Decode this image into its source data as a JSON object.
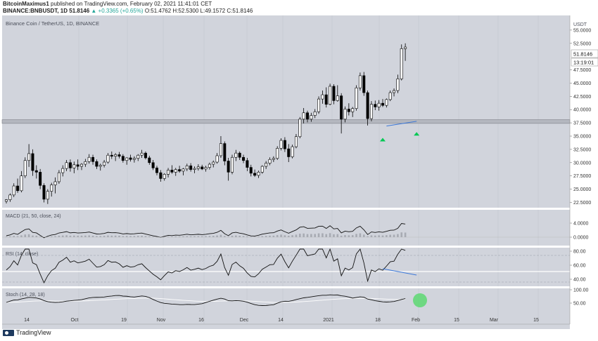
{
  "header": {
    "author": "BitcoinMaximus1",
    "published": "published on TradingView.com, February 02, 2021 11:41:01 CET",
    "symbol": "BINANCE:BNBUSDT, 1D",
    "last": "51.8146",
    "change": "▲ +0.3365 (+0.65%)",
    "ohlc": "O:51.4762 H:52.5300 L:49.1572 C:51.8146"
  },
  "chart_data": {
    "type": "candlestick",
    "title": "Binance Coin / TetherUS, 1D, BINANCE",
    "currency": "USDT",
    "price_axis": {
      "ylim": [
        21.5,
        57.5
      ],
      "ticks": [
        "55.0000",
        "52.5000",
        "47.5000",
        "45.0000",
        "42.5000",
        "40.0000",
        "37.5000",
        "35.0000",
        "32.5000",
        "30.0000",
        "27.5000",
        "25.0000",
        "22.5000"
      ]
    },
    "last_price_label": "51.8146",
    "countdown_label": "13:19:01",
    "support_zone": [
      37.4,
      38.1
    ],
    "time_axis": {
      "labels": [
        "14",
        "Oct",
        "19",
        "Nov",
        "16",
        "Dec",
        "14",
        "2021",
        "18",
        "Feb",
        "15",
        "Mar",
        "15"
      ]
    },
    "candles": [
      [
        22.7,
        23.1,
        22.3,
        23.0
      ],
      [
        23.0,
        24.2,
        22.6,
        23.9
      ],
      [
        23.9,
        26.1,
        23.5,
        25.6
      ],
      [
        25.6,
        27.0,
        24.3,
        24.7
      ],
      [
        24.7,
        28.4,
        24.4,
        27.5
      ],
      [
        27.5,
        31.0,
        27.1,
        30.4
      ],
      [
        30.4,
        33.5,
        29.2,
        31.7
      ],
      [
        31.7,
        32.5,
        27.5,
        28.5
      ],
      [
        28.5,
        29.5,
        27.0,
        28.2
      ],
      [
        28.2,
        28.8,
        25.0,
        25.7
      ],
      [
        25.7,
        26.1,
        22.5,
        23.1
      ],
      [
        23.1,
        25.0,
        22.2,
        24.6
      ],
      [
        24.6,
        26.2,
        23.6,
        25.8
      ],
      [
        25.8,
        27.2,
        24.2,
        26.4
      ],
      [
        26.4,
        28.6,
        26.0,
        28.1
      ],
      [
        28.1,
        29.5,
        27.4,
        28.9
      ],
      [
        28.9,
        30.5,
        28.4,
        30.0
      ],
      [
        30.0,
        30.6,
        28.3,
        29.0
      ],
      [
        29.0,
        30.2,
        28.0,
        29.6
      ],
      [
        29.6,
        30.6,
        28.6,
        29.3
      ],
      [
        29.3,
        29.9,
        28.6,
        29.7
      ],
      [
        29.7,
        30.7,
        29.2,
        30.2
      ],
      [
        30.2,
        31.6,
        29.8,
        31.0
      ],
      [
        31.0,
        31.5,
        29.6,
        30.2
      ],
      [
        30.2,
        30.6,
        28.8,
        29.3
      ],
      [
        29.3,
        29.8,
        28.5,
        29.5
      ],
      [
        29.5,
        30.5,
        29.1,
        30.1
      ],
      [
        30.1,
        31.8,
        29.8,
        31.4
      ],
      [
        31.4,
        32.1,
        30.7,
        31.2
      ],
      [
        31.2,
        31.8,
        30.3,
        31.5
      ],
      [
        31.5,
        32.0,
        30.8,
        31.2
      ],
      [
        31.2,
        31.6,
        30.0,
        30.4
      ],
      [
        30.4,
        31.0,
        29.6,
        30.9
      ],
      [
        30.9,
        31.5,
        30.2,
        30.6
      ],
      [
        30.6,
        31.2,
        30.0,
        30.8
      ],
      [
        30.8,
        31.6,
        30.3,
        31.4
      ],
      [
        31.4,
        32.4,
        30.9,
        31.8
      ],
      [
        31.8,
        32.1,
        30.6,
        30.9
      ],
      [
        30.9,
        31.3,
        29.6,
        30.0
      ],
      [
        30.0,
        30.5,
        28.6,
        29.0
      ],
      [
        29.0,
        29.4,
        27.6,
        28.1
      ],
      [
        28.1,
        28.6,
        26.4,
        27.0
      ],
      [
        27.0,
        28.0,
        26.6,
        27.8
      ],
      [
        27.8,
        29.0,
        27.2,
        28.6
      ],
      [
        28.6,
        29.5,
        27.9,
        28.2
      ],
      [
        28.2,
        29.0,
        27.5,
        28.7
      ],
      [
        28.7,
        29.4,
        28.1,
        28.4
      ],
      [
        28.4,
        29.0,
        27.6,
        28.8
      ],
      [
        28.8,
        29.8,
        28.4,
        29.4
      ],
      [
        29.4,
        29.9,
        28.3,
        28.7
      ],
      [
        28.7,
        29.3,
        28.0,
        28.9
      ],
      [
        28.9,
        29.7,
        28.5,
        29.2
      ],
      [
        29.2,
        29.6,
        28.6,
        28.8
      ],
      [
        28.8,
        29.4,
        28.3,
        29.1
      ],
      [
        29.1,
        30.0,
        28.7,
        29.7
      ],
      [
        29.7,
        30.4,
        29.1,
        30.1
      ],
      [
        30.1,
        31.8,
        29.8,
        31.3
      ],
      [
        31.3,
        35.0,
        30.9,
        33.6
      ],
      [
        33.6,
        34.0,
        29.5,
        30.3
      ],
      [
        30.3,
        30.9,
        26.6,
        28.2
      ],
      [
        28.2,
        31.5,
        27.8,
        31.0
      ],
      [
        31.0,
        32.4,
        30.3,
        31.8
      ],
      [
        31.8,
        32.1,
        30.5,
        31.0
      ],
      [
        31.0,
        31.5,
        29.9,
        30.4
      ],
      [
        30.4,
        30.9,
        28.4,
        29.1
      ],
      [
        29.1,
        29.6,
        27.4,
        28.0
      ],
      [
        28.0,
        28.7,
        27.3,
        27.6
      ],
      [
        27.6,
        28.5,
        27.1,
        28.2
      ],
      [
        28.2,
        29.5,
        27.9,
        29.3
      ],
      [
        29.3,
        30.3,
        28.8,
        29.9
      ],
      [
        29.9,
        31.0,
        29.5,
        30.6
      ],
      [
        30.6,
        31.2,
        30.1,
        30.8
      ],
      [
        30.8,
        33.1,
        30.5,
        32.7
      ],
      [
        32.7,
        34.6,
        32.3,
        34.2
      ],
      [
        34.2,
        34.8,
        32.0,
        32.6
      ],
      [
        32.6,
        33.5,
        30.1,
        31.1
      ],
      [
        31.1,
        33.4,
        30.8,
        33.0
      ],
      [
        33.0,
        35.4,
        32.7,
        34.9
      ],
      [
        34.9,
        38.6,
        34.6,
        38.2
      ],
      [
        38.2,
        40.3,
        37.4,
        39.4
      ],
      [
        39.4,
        39.8,
        37.6,
        38.2
      ],
      [
        38.2,
        39.4,
        37.7,
        38.9
      ],
      [
        38.9,
        40.1,
        38.4,
        39.6
      ],
      [
        39.6,
        42.5,
        39.2,
        42.0
      ],
      [
        42.0,
        43.6,
        41.1,
        42.8
      ],
      [
        42.8,
        44.2,
        40.4,
        41.0
      ],
      [
        41.0,
        44.9,
        40.8,
        44.4
      ],
      [
        44.4,
        44.8,
        41.0,
        41.7
      ],
      [
        41.7,
        44.6,
        41.5,
        42.6
      ],
      [
        42.6,
        43.1,
        35.5,
        38.2
      ],
      [
        38.2,
        40.6,
        37.6,
        40.1
      ],
      [
        40.1,
        41.2,
        38.9,
        39.6
      ],
      [
        39.6,
        40.5,
        38.6,
        40.2
      ],
      [
        40.2,
        44.6,
        39.8,
        44.1
      ],
      [
        44.1,
        47.0,
        43.6,
        46.4
      ],
      [
        46.4,
        47.1,
        42.6,
        43.2
      ],
      [
        43.2,
        43.6,
        37.0,
        38.3
      ],
      [
        38.3,
        41.6,
        37.8,
        41.0
      ],
      [
        41.0,
        41.7,
        39.9,
        40.5
      ],
      [
        40.5,
        41.8,
        39.8,
        41.2
      ],
      [
        41.2,
        42.0,
        40.5,
        40.8
      ],
      [
        40.8,
        42.1,
        40.4,
        41.9
      ],
      [
        41.9,
        43.6,
        41.6,
        43.2
      ],
      [
        43.2,
        44.0,
        42.5,
        43.6
      ],
      [
        43.6,
        46.6,
        43.1,
        45.8
      ],
      [
        45.8,
        52.3,
        45.5,
        51.5
      ],
      [
        51.5,
        52.5,
        49.2,
        51.8
      ]
    ],
    "arrows": [
      {
        "x": 100,
        "y": 34.4
      },
      {
        "x": 109,
        "y": 35.5
      }
    ],
    "divergence_price": {
      "x1": 101,
      "y1": 36.9,
      "x2": 109,
      "y2": 37.8
    },
    "indicators": [
      {
        "label": "MACD (21, 50, close, 24)",
        "ticks": [
          "4.0000",
          "0.0000"
        ],
        "ylim": [
          -1.5,
          6.5
        ]
      },
      {
        "label": "RSI (14, close)",
        "ticks": [
          "80.00",
          "60.00",
          "40.00"
        ],
        "ylim": [
          25,
          85
        ],
        "bands": [
          70,
          50,
          30
        ]
      },
      {
        "label": "Stoch (14, 28, 18)",
        "ticks": [
          "100.00",
          "50.00"
        ],
        "ylim": [
          0,
          110
        ]
      }
    ]
  }
}
